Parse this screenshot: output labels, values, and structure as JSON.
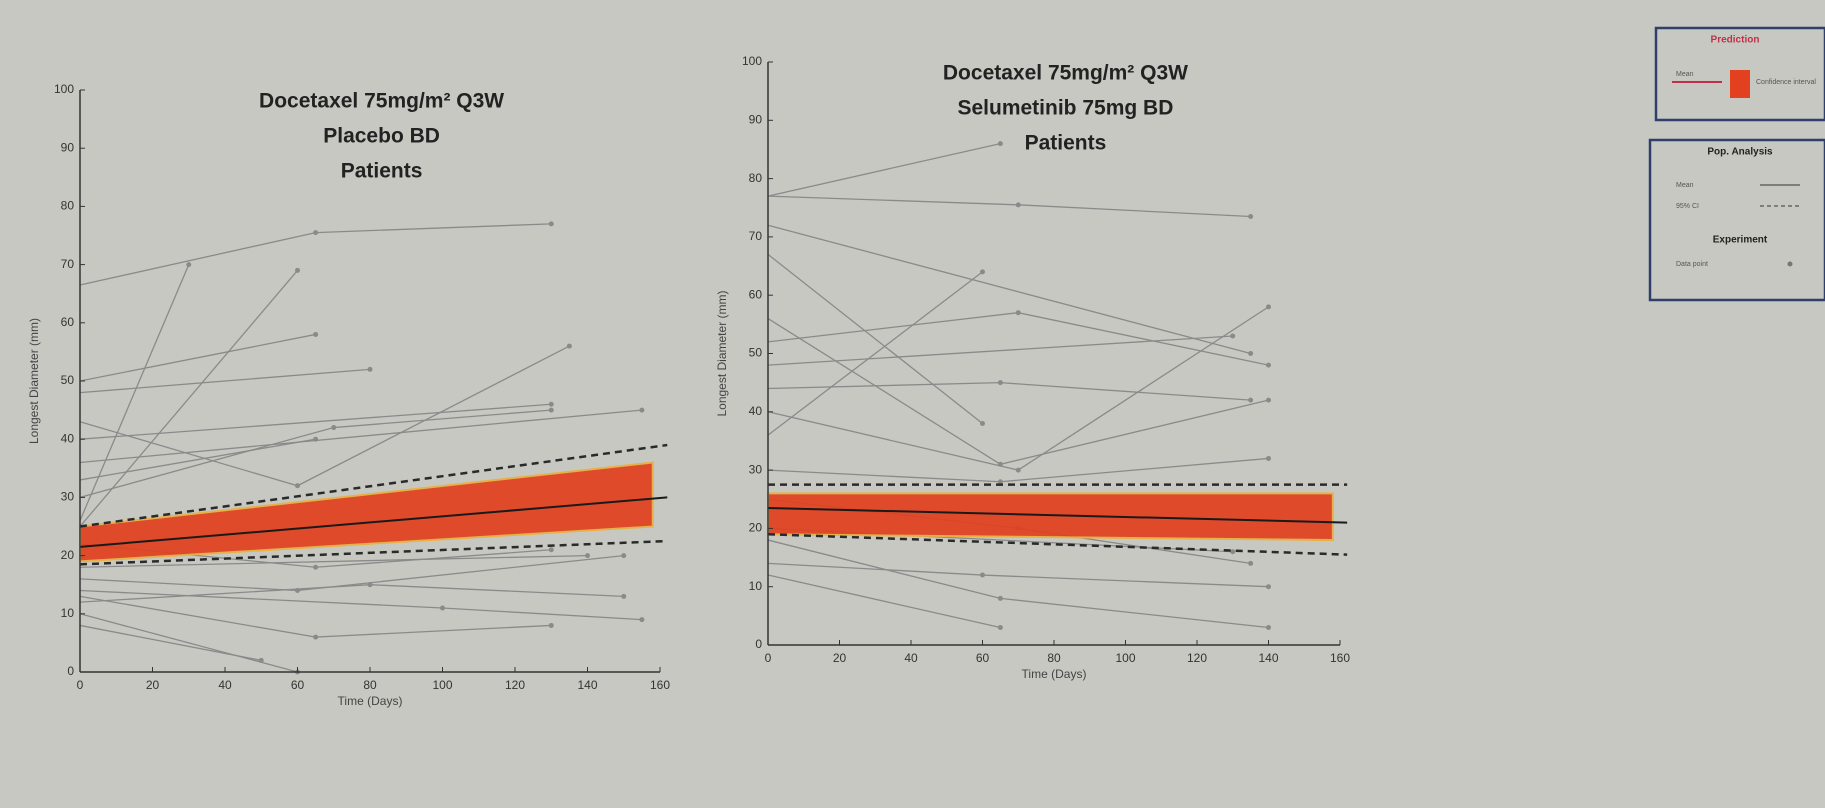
{
  "chart_data": [
    {
      "type": "line",
      "title": [
        "Docetaxel 75mg/m² Q3W",
        "Placebo BD",
        "Patients"
      ],
      "xlabel": "Time (Days)",
      "ylabel": "Longest Diameter (mm)",
      "xlim": [
        0,
        160
      ],
      "ylim": [
        0,
        100
      ],
      "xticks": [
        0,
        20,
        40,
        60,
        80,
        100,
        120,
        140,
        160
      ],
      "yticks": [
        0,
        10,
        20,
        30,
        40,
        50,
        60,
        70,
        80,
        90,
        100
      ],
      "patient_color": "#8a8a8a",
      "series": [
        {
          "x": [
            0,
            65,
            130
          ],
          "values": [
            66.5,
            75.5,
            77
          ]
        },
        {
          "x": [
            0,
            30
          ],
          "values": [
            26,
            70
          ]
        },
        {
          "x": [
            0,
            65
          ],
          "values": [
            50,
            58
          ]
        },
        {
          "x": [
            0,
            80
          ],
          "values": [
            48,
            52
          ]
        },
        {
          "x": [
            0,
            60
          ],
          "values": [
            25,
            69
          ]
        },
        {
          "x": [
            0,
            60,
            135
          ],
          "values": [
            43,
            32,
            56
          ]
        },
        {
          "x": [
            0,
            130
          ],
          "values": [
            40,
            46
          ]
        },
        {
          "x": [
            0,
            155
          ],
          "values": [
            36,
            45
          ]
        },
        {
          "x": [
            0,
            70,
            130
          ],
          "values": [
            30,
            42,
            45
          ]
        },
        {
          "x": [
            0,
            65
          ],
          "values": [
            33,
            40
          ]
        },
        {
          "x": [
            0,
            65,
            130
          ],
          "values": [
            22,
            18,
            21
          ]
        },
        {
          "x": [
            0,
            140
          ],
          "values": [
            18,
            20
          ]
        },
        {
          "x": [
            0,
            60,
            150
          ],
          "values": [
            16,
            14,
            20
          ]
        },
        {
          "x": [
            0,
            100,
            155
          ],
          "values": [
            14,
            11,
            9
          ]
        },
        {
          "x": [
            0,
            65,
            130
          ],
          "values": [
            13,
            6,
            8
          ]
        },
        {
          "x": [
            0,
            80,
            150
          ],
          "values": [
            12,
            15,
            13
          ]
        },
        {
          "x": [
            0,
            60
          ],
          "values": [
            10,
            0
          ]
        },
        {
          "x": [
            0,
            50
          ],
          "values": [
            8,
            2
          ]
        }
      ],
      "band": {
        "x": [
          0,
          158
        ],
        "lower": [
          19,
          25
        ],
        "upper": [
          25,
          36
        ],
        "color": "#e2401f"
      },
      "mean": {
        "x": [
          0,
          162
        ],
        "values": [
          21.5,
          30
        ],
        "color": "#1a1a1a"
      },
      "ci": {
        "x": [
          0,
          162
        ],
        "lower": [
          18.5,
          22.5
        ],
        "upper": [
          25,
          39
        ],
        "color": "#2a2a2a"
      }
    },
    {
      "type": "line",
      "title": [
        "Docetaxel 75mg/m² Q3W",
        "Selumetinib 75mg BD",
        "Patients"
      ],
      "xlabel": "Time (Days)",
      "ylabel": "Longest Diameter (mm)",
      "xlim": [
        0,
        160
      ],
      "ylim": [
        0,
        100
      ],
      "xticks": [
        0,
        20,
        40,
        60,
        80,
        100,
        120,
        140,
        160
      ],
      "yticks": [
        0,
        10,
        20,
        30,
        40,
        50,
        60,
        70,
        80,
        90,
        100
      ],
      "patient_color": "#8a8a8a",
      "series": [
        {
          "x": [
            0,
            65
          ],
          "values": [
            77,
            86
          ]
        },
        {
          "x": [
            0,
            70,
            135
          ],
          "values": [
            77,
            75.5,
            73.5
          ]
        },
        {
          "x": [
            0,
            135
          ],
          "values": [
            72,
            50
          ]
        },
        {
          "x": [
            0,
            60
          ],
          "values": [
            67,
            38
          ]
        },
        {
          "x": [
            0,
            65,
            140
          ],
          "values": [
            56,
            31,
            42
          ]
        },
        {
          "x": [
            0,
            70,
            140
          ],
          "values": [
            52,
            57,
            48
          ]
        },
        {
          "x": [
            0,
            130
          ],
          "values": [
            48,
            53
          ]
        },
        {
          "x": [
            0,
            65,
            135
          ],
          "values": [
            44,
            45,
            42
          ]
        },
        {
          "x": [
            0,
            70,
            140
          ],
          "values": [
            40,
            30,
            58
          ]
        },
        {
          "x": [
            0,
            60
          ],
          "values": [
            36,
            64
          ]
        },
        {
          "x": [
            0,
            65,
            140
          ],
          "values": [
            30,
            28,
            32
          ]
        },
        {
          "x": [
            0,
            70,
            135
          ],
          "values": [
            25,
            20,
            14
          ]
        },
        {
          "x": [
            0,
            130
          ],
          "values": [
            20,
            16
          ]
        },
        {
          "x": [
            0,
            65,
            140
          ],
          "values": [
            18,
            8,
            3
          ]
        },
        {
          "x": [
            0,
            60,
            140
          ],
          "values": [
            14,
            12,
            10
          ]
        },
        {
          "x": [
            0,
            65
          ],
          "values": [
            12,
            3
          ]
        }
      ],
      "band": {
        "x": [
          0,
          158
        ],
        "lower": [
          19,
          18
        ],
        "upper": [
          26,
          26
        ],
        "color": "#e2401f"
      },
      "mean": {
        "x": [
          0,
          162
        ],
        "values": [
          23.5,
          21
        ],
        "color": "#1a1a1a"
      },
      "ci": {
        "x": [
          0,
          162
        ],
        "lower": [
          19,
          15.5
        ],
        "upper": [
          27.5,
          27.5
        ],
        "color": "#2a2a2a"
      }
    }
  ],
  "legend": {
    "prediction": {
      "title": "Prediction",
      "items": [
        "Mean",
        "Confidence interval"
      ]
    },
    "pop_analysis": {
      "title": "Pop. Analysis",
      "items": [
        "Mean",
        "95% CI"
      ]
    },
    "experiment": {
      "title": "Experiment",
      "items": [
        "Data point"
      ]
    }
  }
}
